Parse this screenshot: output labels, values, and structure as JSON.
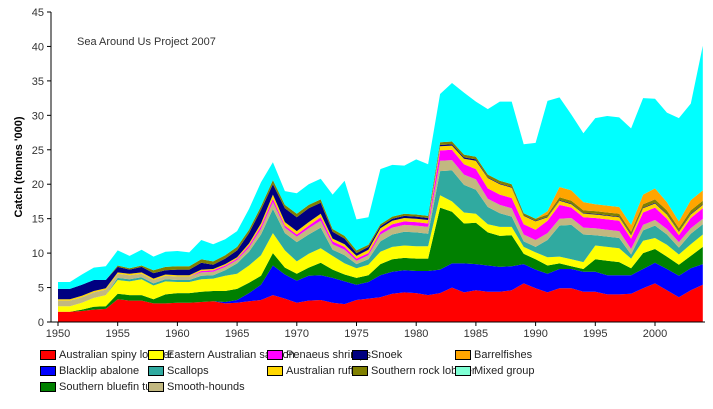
{
  "chart_data": {
    "type": "area",
    "stacked": true,
    "annotation": "Sea Around Us Project 2007",
    "xlabel": "",
    "ylabel": "Catch (tonnes '000)",
    "xlim": [
      1950,
      2004
    ],
    "ylim": [
      0,
      45
    ],
    "yticks": [
      0,
      5,
      10,
      15,
      20,
      25,
      30,
      35,
      40,
      45
    ],
    "xticks": [
      1950,
      1955,
      1960,
      1965,
      1970,
      1975,
      1980,
      1985,
      1990,
      1995,
      2000
    ],
    "grid": false,
    "legend_position": "bottom",
    "x_start": 1950,
    "series": [
      {
        "name": "Australian spiny lobster",
        "color": "#ff0000",
        "values": [
          1.5,
          1.5,
          1.6,
          1.8,
          1.9,
          3.3,
          3.1,
          3.1,
          2.7,
          2.7,
          2.8,
          2.8,
          2.9,
          3.0,
          2.7,
          2.8,
          3.0,
          3.2,
          3.9,
          3.4,
          2.8,
          3.1,
          3.2,
          2.8,
          2.6,
          3.2,
          3.4,
          3.6,
          4.1,
          4.3,
          4.2,
          3.9,
          4.2,
          5.0,
          4.3,
          4.6,
          4.4,
          4.4,
          4.6,
          5.6,
          4.9,
          4.3,
          4.9,
          4.9,
          4.4,
          4.4,
          4.0,
          4.0,
          4.1,
          4.9,
          5.6,
          4.6,
          3.6,
          4.6,
          5.4
        ]
      },
      {
        "name": "Blacklip abalone",
        "color": "#0000ff",
        "values": [
          0,
          0,
          0,
          0,
          0,
          0,
          0,
          0,
          0,
          0,
          0,
          0,
          0,
          0,
          0.2,
          0.4,
          1.2,
          2.2,
          4.3,
          3.5,
          3.2,
          3.6,
          3.6,
          3.6,
          3.3,
          2.2,
          2.4,
          3.2,
          3.2,
          3.2,
          3.2,
          3.5,
          3.4,
          3.5,
          4.2,
          3.8,
          3.8,
          3.6,
          3.5,
          2.8,
          2.7,
          2.7,
          2.8,
          2.8,
          2.9,
          2.9,
          2.8,
          2.8,
          2.7,
          2.8,
          3.0,
          3.1,
          3.1,
          3.2,
          3.0
        ]
      },
      {
        "name": "Southern bluefin tuna",
        "color": "#008000",
        "values": [
          0,
          0,
          0.2,
          0.4,
          0.4,
          0.8,
          0.8,
          0.8,
          0.6,
          1.3,
          1.4,
          1.4,
          1.5,
          1.5,
          1.6,
          1.6,
          1.5,
          1.3,
          1.8,
          1.0,
          1.0,
          1.2,
          1.8,
          1.2,
          1.0,
          1.0,
          1.0,
          1.6,
          1.8,
          1.8,
          1.8,
          1.8,
          9.0,
          7.5,
          5.8,
          6.0,
          4.8,
          4.5,
          4.5,
          1.5,
          1.5,
          1.2,
          0.8,
          0.4,
          0.4,
          1.8,
          2.1,
          1.9,
          1.0,
          2.3,
          2.0,
          1.8,
          1.6,
          1.8,
          2.5
        ]
      },
      {
        "name": "Eastern Australian salmon",
        "color": "#ffff00",
        "values": [
          0.8,
          0.8,
          1.0,
          1.3,
          1.6,
          2.0,
          2.0,
          2.3,
          2.0,
          1.9,
          1.6,
          1.6,
          1.8,
          1.8,
          2.2,
          2.2,
          2.5,
          3.0,
          2.9,
          2.5,
          1.8,
          2.0,
          2.1,
          2.0,
          1.6,
          1.4,
          1.5,
          1.8,
          1.8,
          1.8,
          1.8,
          1.8,
          1.8,
          1.5,
          1.6,
          1.3,
          1.2,
          1.3,
          1.2,
          1.0,
          1.0,
          1.2,
          1.0,
          1.0,
          1.0,
          2.0,
          2.0,
          2.0,
          1.4,
          1.8,
          1.6,
          1.7,
          1.5,
          1.7,
          1.8
        ]
      },
      {
        "name": "Scallops",
        "color": "#30aaa0",
        "values": [
          0,
          0,
          0,
          0,
          0,
          0.3,
          0.3,
          0.3,
          0.3,
          0.3,
          0.3,
          0.3,
          0.5,
          0.5,
          0.8,
          1.5,
          2.0,
          3.0,
          3.5,
          2.5,
          2.8,
          2.8,
          3.0,
          0.9,
          1.2,
          0.6,
          0.8,
          1.5,
          1.8,
          2.0,
          2.0,
          1.8,
          3.5,
          4.5,
          4.0,
          3.5,
          2.5,
          2.0,
          1.5,
          0.8,
          0.8,
          2.5,
          4.5,
          5.0,
          4.0,
          1.5,
          1.5,
          1.5,
          0.6,
          1.5,
          1.8,
          1.5,
          1.0,
          1.5,
          1.5
        ]
      },
      {
        "name": "Smooth-hounds",
        "color": "#c2b880",
        "values": [
          0.8,
          0.8,
          0.8,
          0.8,
          0.8,
          0.6,
          0.6,
          0.5,
          0.5,
          0.5,
          0.5,
          0.5,
          0.5,
          0.5,
          0.5,
          0.5,
          0.6,
          0.8,
          1.0,
          0.8,
          0.8,
          0.9,
          1.0,
          0.8,
          0.8,
          0.5,
          0.6,
          1.0,
          1.0,
          1.0,
          1.0,
          1.0,
          1.5,
          1.5,
          1.5,
          1.5,
          1.2,
          1.2,
          1.2,
          1.0,
          1.0,
          1.0,
          1.0,
          1.0,
          1.0,
          1.0,
          1.0,
          1.0,
          0.8,
          0.8,
          0.8,
          0.8,
          0.8,
          0.8,
          0.8
        ]
      },
      {
        "name": "Penaeus shrimps",
        "color": "#ff00ff",
        "values": [
          0,
          0,
          0,
          0,
          0,
          0,
          0,
          0,
          0,
          0,
          0,
          0,
          0.2,
          0.2,
          0.2,
          0.2,
          0.3,
          0.4,
          0.5,
          0.3,
          0.3,
          0.4,
          0.5,
          0.4,
          0.4,
          0.3,
          0.3,
          0.4,
          0.5,
          0.5,
          0.5,
          0.5,
          1.5,
          1.5,
          1.5,
          1.5,
          1.5,
          1.5,
          1.5,
          1.5,
          1.5,
          1.8,
          2.0,
          1.5,
          1.5,
          1.5,
          1.5,
          1.5,
          1.5,
          1.8,
          1.8,
          1.5,
          1.0,
          1.5,
          1.5
        ]
      },
      {
        "name": "Australian ruff",
        "color": "#ffd700",
        "values": [
          0.2,
          0.2,
          0.2,
          0.2,
          0.2,
          0.2,
          0.2,
          0.2,
          0.2,
          0.2,
          0.2,
          0.2,
          0.2,
          0.2,
          0.2,
          0.2,
          0.3,
          0.4,
          0.6,
          0.5,
          0.5,
          0.5,
          0.5,
          0.4,
          0.4,
          0.4,
          0.5,
          0.5,
          0.5,
          0.5,
          0.5,
          0.5,
          0.6,
          0.6,
          0.8,
          1.2,
          1.5,
          1.5,
          1.5,
          1.2,
          1.2,
          0.5,
          0.6,
          0.5,
          0.5,
          0.5,
          0.5,
          0.5,
          0.5,
          0.6,
          0.6,
          0.6,
          0.5,
          0.5,
          0.5
        ]
      },
      {
        "name": "Snoek",
        "color": "#000080",
        "values": [
          1.5,
          1.5,
          1.6,
          1.6,
          1.2,
          0.8,
          0.6,
          0.8,
          0.8,
          0.6,
          0.8,
          0.8,
          1.0,
          0.6,
          0.8,
          1.0,
          1.5,
          2.0,
          1.5,
          2.0,
          2.0,
          2.0,
          1.6,
          1.0,
          0.8,
          0.4,
          0.4,
          0.3,
          0.3,
          0.3,
          0.3,
          0.3,
          0.2,
          0.2,
          0.2,
          0.2,
          0.1,
          0.1,
          0.1,
          0.1,
          0.1,
          0.1,
          0.1,
          0.1,
          0.1,
          0.1,
          0.1,
          0.1,
          0.1,
          0.1,
          0.1,
          0.1,
          0.1,
          0.1,
          0.1
        ]
      },
      {
        "name": "Southern rock lobster",
        "color": "#808000",
        "values": [
          0,
          0,
          0,
          0,
          0,
          0.2,
          0.2,
          0.2,
          0.4,
          0.5,
          0.5,
          0.5,
          0.5,
          0.5,
          0.5,
          0.5,
          0.5,
          0.5,
          0.6,
          0.5,
          0.5,
          0.5,
          0.5,
          0.4,
          0.4,
          0.4,
          0.3,
          0.3,
          0.3,
          0.3,
          0.3,
          0.3,
          0.4,
          0.4,
          0.4,
          0.4,
          0.4,
          0.4,
          0.4,
          0.3,
          0.3,
          0.3,
          0.4,
          0.4,
          0.4,
          0.4,
          0.4,
          0.4,
          0.4,
          0.5,
          0.5,
          0.5,
          0.4,
          0.5,
          0.5
        ]
      },
      {
        "name": "Barrelfishes",
        "color": "#ffa500",
        "values": [
          0,
          0,
          0,
          0,
          0,
          0,
          0,
          0,
          0,
          0,
          0,
          0,
          0,
          0,
          0,
          0,
          0,
          0,
          0,
          0,
          0,
          0,
          0,
          0,
          0,
          0,
          0,
          0,
          0,
          0,
          0,
          0,
          0,
          0,
          0,
          0,
          0,
          0,
          0,
          0,
          0,
          0.5,
          1.5,
          1.5,
          1.2,
          1.0,
          1.0,
          1.0,
          1.0,
          1.4,
          1.6,
          1.2,
          1.0,
          1.5,
          1.5
        ]
      },
      {
        "name": "Mixed group",
        "color": "#00ffff",
        "legend_color": "#7fffd4",
        "values": [
          1.0,
          1.0,
          1.5,
          1.8,
          2.0,
          2.2,
          1.8,
          2.3,
          2.0,
          2.2,
          2.2,
          2.0,
          2.8,
          2.5,
          2.3,
          2.3,
          3.0,
          3.5,
          2.6,
          2.0,
          3.0,
          3.0,
          3.0,
          5.0,
          8.0,
          4.5,
          4.0,
          8.0,
          7.5,
          7.0,
          8.0,
          7.5,
          7.0,
          8.5,
          9.0,
          8.0,
          9.5,
          11.5,
          12.0,
          10.0,
          11.0,
          16.0,
          13.0,
          11.0,
          10.0,
          12.5,
          13.0,
          13.0,
          14.0,
          14.0,
          13.0,
          13.0,
          15.0,
          14.0,
          21.0
        ]
      }
    ]
  }
}
